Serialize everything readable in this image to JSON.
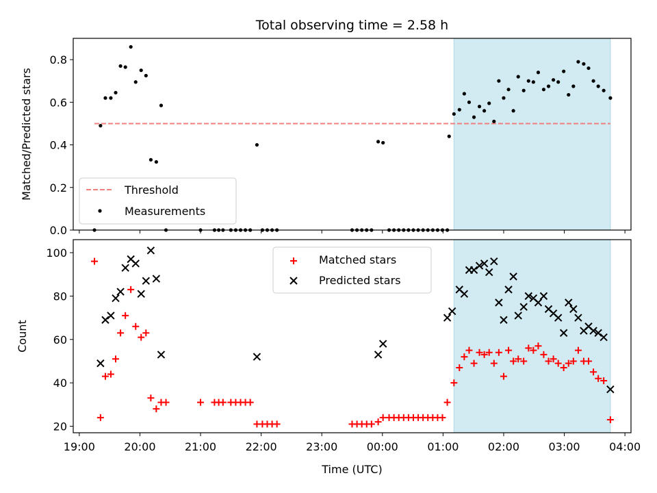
{
  "chart_data": [
    {
      "type": "scatter",
      "title": "Total observing time = 2.58 h",
      "ylabel": "Matched/Predicted stars",
      "ylim": [
        0,
        0.9
      ],
      "yticks": [
        0.0,
        0.2,
        0.4,
        0.6,
        0.8
      ],
      "ytick_labels": [
        "0.0",
        "0.2",
        "0.4",
        "0.6",
        "0.8"
      ],
      "xlim_hours": [
        18.9,
        28.1
      ],
      "shaded_span_hours": [
        25.18,
        27.76
      ],
      "shade_color": "#add8e6",
      "threshold": {
        "name": "Threshold",
        "value": 0.5,
        "x_range_hours": [
          19.25,
          27.76
        ],
        "color": "#f08080",
        "style": "dashed"
      },
      "legend": {
        "position": "lower left",
        "entries": [
          "Threshold",
          "Measurements"
        ]
      },
      "series": [
        {
          "name": "Measurements",
          "color": "#000000",
          "marker": "dot",
          "points": [
            [
              19.25,
              0.0
            ],
            [
              19.35,
              0.49
            ],
            [
              19.43,
              0.62
            ],
            [
              19.52,
              0.62
            ],
            [
              19.6,
              0.645
            ],
            [
              19.68,
              0.77
            ],
            [
              19.76,
              0.765
            ],
            [
              19.85,
              0.86
            ],
            [
              19.93,
              0.695
            ],
            [
              20.02,
              0.75
            ],
            [
              20.1,
              0.725
            ],
            [
              20.18,
              0.33
            ],
            [
              20.27,
              0.32
            ],
            [
              20.35,
              0.585
            ],
            [
              20.43,
              0.0
            ],
            [
              21.0,
              0.0
            ],
            [
              21.23,
              0.0
            ],
            [
              21.3,
              0.0
            ],
            [
              21.37,
              0.0
            ],
            [
              21.5,
              0.0
            ],
            [
              21.58,
              0.0
            ],
            [
              21.66,
              0.0
            ],
            [
              21.74,
              0.0
            ],
            [
              21.82,
              0.0
            ],
            [
              21.93,
              0.4
            ],
            [
              22.02,
              0.0
            ],
            [
              22.1,
              0.0
            ],
            [
              22.18,
              0.0
            ],
            [
              22.26,
              0.0
            ],
            [
              23.5,
              0.0
            ],
            [
              23.58,
              0.0
            ],
            [
              23.66,
              0.0
            ],
            [
              23.74,
              0.0
            ],
            [
              23.82,
              0.0
            ],
            [
              23.93,
              0.415
            ],
            [
              24.01,
              0.41
            ],
            [
              24.11,
              0.0
            ],
            [
              24.19,
              0.0
            ],
            [
              24.27,
              0.0
            ],
            [
              24.35,
              0.0
            ],
            [
              24.43,
              0.0
            ],
            [
              24.51,
              0.0
            ],
            [
              24.59,
              0.0
            ],
            [
              24.67,
              0.0
            ],
            [
              24.75,
              0.0
            ],
            [
              24.83,
              0.0
            ],
            [
              24.91,
              0.0
            ],
            [
              24.99,
              0.0
            ],
            [
              25.07,
              0.0
            ],
            [
              25.1,
              0.44
            ],
            [
              25.18,
              0.545
            ],
            [
              25.27,
              0.565
            ],
            [
              25.35,
              0.64
            ],
            [
              25.43,
              0.6
            ],
            [
              25.51,
              0.53
            ],
            [
              25.6,
              0.58
            ],
            [
              25.68,
              0.56
            ],
            [
              25.76,
              0.595
            ],
            [
              25.84,
              0.51
            ],
            [
              25.92,
              0.7
            ],
            [
              26.0,
              0.62
            ],
            [
              26.08,
              0.66
            ],
            [
              26.16,
              0.56
            ],
            [
              26.24,
              0.72
            ],
            [
              26.33,
              0.655
            ],
            [
              26.41,
              0.7
            ],
            [
              26.49,
              0.695
            ],
            [
              26.57,
              0.74
            ],
            [
              26.66,
              0.66
            ],
            [
              26.74,
              0.675
            ],
            [
              26.82,
              0.705
            ],
            [
              26.9,
              0.695
            ],
            [
              26.99,
              0.745
            ],
            [
              27.07,
              0.635
            ],
            [
              27.15,
              0.675
            ],
            [
              27.23,
              0.79
            ],
            [
              27.32,
              0.78
            ],
            [
              27.4,
              0.76
            ],
            [
              27.48,
              0.7
            ],
            [
              27.56,
              0.675
            ],
            [
              27.65,
              0.655
            ],
            [
              27.76,
              0.62
            ]
          ]
        }
      ]
    },
    {
      "type": "scatter",
      "xlabel": "Time (UTC)",
      "ylabel": "Count",
      "ylim": [
        17,
        106
      ],
      "yticks": [
        20,
        40,
        60,
        80,
        100
      ],
      "ytick_labels": [
        "20",
        "40",
        "60",
        "80",
        "100"
      ],
      "xlim_hours": [
        18.9,
        28.1
      ],
      "xticks_hours": [
        19,
        20,
        21,
        22,
        23,
        24,
        25,
        26,
        27,
        28
      ],
      "xtick_labels": [
        "19:00",
        "20:00",
        "21:00",
        "22:00",
        "23:00",
        "00:00",
        "01:00",
        "02:00",
        "03:00",
        "04:00"
      ],
      "shaded_span_hours": [
        25.18,
        27.76
      ],
      "shade_color": "#add8e6",
      "legend": {
        "position": "upper center",
        "entries": [
          "Matched stars",
          "Predicted stars"
        ]
      },
      "series": [
        {
          "name": "Matched stars",
          "color": "#ff0000",
          "marker": "plus",
          "points": [
            [
              19.25,
              96
            ],
            [
              19.35,
              24
            ],
            [
              19.43,
              43
            ],
            [
              19.52,
              44
            ],
            [
              19.6,
              51
            ],
            [
              19.68,
              63
            ],
            [
              19.76,
              71
            ],
            [
              19.85,
              83
            ],
            [
              19.93,
              66
            ],
            [
              20.02,
              61
            ],
            [
              20.1,
              63
            ],
            [
              20.18,
              33
            ],
            [
              20.27,
              28
            ],
            [
              20.35,
              31
            ],
            [
              20.43,
              31
            ],
            [
              21.0,
              31
            ],
            [
              21.23,
              31
            ],
            [
              21.3,
              31
            ],
            [
              21.37,
              31
            ],
            [
              21.5,
              31
            ],
            [
              21.58,
              31
            ],
            [
              21.66,
              31
            ],
            [
              21.74,
              31
            ],
            [
              21.82,
              31
            ],
            [
              21.93,
              21
            ],
            [
              22.02,
              21
            ],
            [
              22.1,
              21
            ],
            [
              22.18,
              21
            ],
            [
              22.26,
              21
            ],
            [
              23.5,
              21
            ],
            [
              23.58,
              21
            ],
            [
              23.66,
              21
            ],
            [
              23.74,
              21
            ],
            [
              23.82,
              21
            ],
            [
              23.93,
              22
            ],
            [
              24.01,
              24
            ],
            [
              24.11,
              24
            ],
            [
              24.19,
              24
            ],
            [
              24.27,
              24
            ],
            [
              24.35,
              24
            ],
            [
              24.43,
              24
            ],
            [
              24.51,
              24
            ],
            [
              24.59,
              24
            ],
            [
              24.67,
              24
            ],
            [
              24.75,
              24
            ],
            [
              24.83,
              24
            ],
            [
              24.91,
              24
            ],
            [
              24.99,
              24
            ],
            [
              25.07,
              31
            ],
            [
              25.18,
              40
            ],
            [
              25.27,
              47
            ],
            [
              25.35,
              52
            ],
            [
              25.43,
              55
            ],
            [
              25.51,
              49
            ],
            [
              25.6,
              54
            ],
            [
              25.68,
              53
            ],
            [
              25.76,
              54
            ],
            [
              25.84,
              49
            ],
            [
              25.92,
              54
            ],
            [
              26.0,
              43
            ],
            [
              26.08,
              55
            ],
            [
              26.16,
              50
            ],
            [
              26.24,
              51
            ],
            [
              26.33,
              50
            ],
            [
              26.41,
              56
            ],
            [
              26.49,
              55
            ],
            [
              26.57,
              57
            ],
            [
              26.66,
              53
            ],
            [
              26.74,
              50
            ],
            [
              26.82,
              51
            ],
            [
              26.9,
              49
            ],
            [
              26.99,
              47
            ],
            [
              27.07,
              49
            ],
            [
              27.15,
              50
            ],
            [
              27.23,
              55
            ],
            [
              27.32,
              50
            ],
            [
              27.4,
              50
            ],
            [
              27.48,
              45
            ],
            [
              27.56,
              42
            ],
            [
              27.65,
              41
            ],
            [
              27.76,
              23
            ]
          ]
        },
        {
          "name": "Predicted stars",
          "color": "#000000",
          "marker": "x",
          "points": [
            [
              19.35,
              49
            ],
            [
              19.43,
              69
            ],
            [
              19.52,
              71
            ],
            [
              19.6,
              79
            ],
            [
              19.68,
              82
            ],
            [
              19.76,
              93
            ],
            [
              19.85,
              97
            ],
            [
              19.93,
              95
            ],
            [
              20.02,
              81
            ],
            [
              20.1,
              87
            ],
            [
              20.18,
              101
            ],
            [
              20.27,
              88
            ],
            [
              20.35,
              53
            ],
            [
              21.93,
              52
            ],
            [
              23.93,
              53
            ],
            [
              24.01,
              58
            ],
            [
              25.07,
              70
            ],
            [
              25.15,
              73
            ],
            [
              25.27,
              83
            ],
            [
              25.35,
              81
            ],
            [
              25.43,
              92
            ],
            [
              25.51,
              92
            ],
            [
              25.6,
              94
            ],
            [
              25.68,
              95
            ],
            [
              25.76,
              91
            ],
            [
              25.84,
              96
            ],
            [
              25.92,
              77
            ],
            [
              26.0,
              69
            ],
            [
              26.08,
              83
            ],
            [
              26.16,
              89
            ],
            [
              26.24,
              71
            ],
            [
              26.33,
              75
            ],
            [
              26.41,
              80
            ],
            [
              26.49,
              79
            ],
            [
              26.57,
              77
            ],
            [
              26.66,
              80
            ],
            [
              26.74,
              74
            ],
            [
              26.82,
              72
            ],
            [
              26.9,
              70
            ],
            [
              26.99,
              63
            ],
            [
              27.07,
              77
            ],
            [
              27.15,
              74
            ],
            [
              27.23,
              70
            ],
            [
              27.32,
              64
            ],
            [
              27.4,
              66
            ],
            [
              27.48,
              64
            ],
            [
              27.56,
              63
            ],
            [
              27.65,
              61
            ],
            [
              27.76,
              37
            ]
          ]
        }
      ]
    }
  ]
}
